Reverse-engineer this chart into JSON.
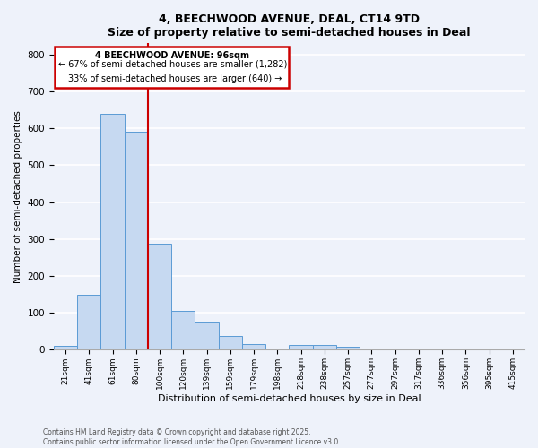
{
  "title": "4, BEECHWOOD AVENUE, DEAL, CT14 9TD",
  "subtitle": "Size of property relative to semi-detached houses in Deal",
  "xlabel": "Distribution of semi-detached houses by size in Deal",
  "ylabel": "Number of semi-detached properties",
  "bin_labels": [
    "21sqm",
    "41sqm",
    "61sqm",
    "80sqm",
    "100sqm",
    "120sqm",
    "139sqm",
    "159sqm",
    "179sqm",
    "198sqm",
    "218sqm",
    "238sqm",
    "257sqm",
    "277sqm",
    "297sqm",
    "317sqm",
    "336sqm",
    "356sqm",
    "395sqm",
    "415sqm"
  ],
  "bar_heights": [
    10,
    148,
    638,
    590,
    288,
    105,
    76,
    37,
    15,
    0,
    12,
    12,
    8,
    0,
    0,
    0,
    0,
    0,
    0,
    0
  ],
  "bar_color": "#c6d9f1",
  "bar_edge_color": "#5b9bd5",
  "property_line_x": 3.5,
  "property_line_color": "#cc0000",
  "annotation_title": "4 BEECHWOOD AVENUE: 96sqm",
  "annotation_line1": "← 67% of semi-detached houses are smaller (1,282)",
  "annotation_line2": "33% of semi-detached houses are larger (640) →",
  "annotation_box_color": "#cc0000",
  "ylim": [
    0,
    830
  ],
  "yticks": [
    0,
    100,
    200,
    300,
    400,
    500,
    600,
    700,
    800
  ],
  "footer1": "Contains HM Land Registry data © Crown copyright and database right 2025.",
  "footer2": "Contains public sector information licensed under the Open Government Licence v3.0.",
  "background_color": "#eef2fa",
  "grid_color": "#ffffff"
}
